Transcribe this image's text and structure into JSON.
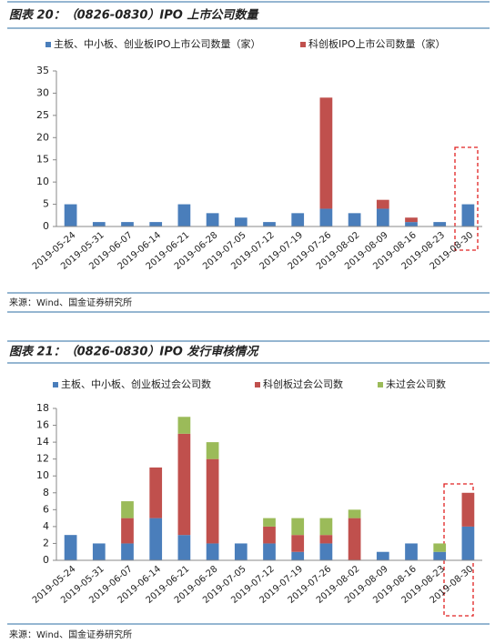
{
  "chart_data": [
    {
      "type": "stacked-bar",
      "title": "图表 20：（0826-0830）IPO 上市公司数量",
      "categories": [
        "2019-05-24",
        "2019-05-31",
        "2019-06-07",
        "2019-06-14",
        "2019-06-21",
        "2019-06-28",
        "2019-07-05",
        "2019-07-12",
        "2019-07-19",
        "2019-07-26",
        "2019-08-02",
        "2019-08-09",
        "2019-08-16",
        "2019-08-23",
        "2019-08-30"
      ],
      "series": [
        {
          "name": "主板、中小板、创业板IPO上市公司数量（家）",
          "color": "#4a7ebb",
          "values": [
            5,
            1,
            1,
            1,
            5,
            3,
            2,
            1,
            3,
            4,
            3,
            4,
            1,
            1,
            5
          ]
        },
        {
          "name": "科创板IPO上市公司数量（家）",
          "color": "#c0504d",
          "values": [
            0,
            0,
            0,
            0,
            0,
            0,
            0,
            0,
            0,
            25,
            0,
            2,
            1,
            0,
            0
          ]
        }
      ],
      "ylim": [
        0,
        35
      ],
      "yticks": [
        0,
        5,
        10,
        15,
        20,
        25,
        30,
        35
      ],
      "grid": false,
      "source": "来源：Wind、国金证券研究所"
    },
    {
      "type": "stacked-bar",
      "title": "图表 21：（0826-0830）IPO 发行审核情况",
      "categories": [
        "2019-05-24",
        "2019-05-31",
        "2019-06-07",
        "2019-06-14",
        "2019-06-21",
        "2019-06-28",
        "2019-07-05",
        "2019-07-12",
        "2019-07-19",
        "2019-07-26",
        "2019-08-02",
        "2019-08-09",
        "2019-08-16",
        "2019-08-23",
        "2019-08-30"
      ],
      "series": [
        {
          "name": "主板、中小板、创业板过会公司数",
          "color": "#4a7ebb",
          "values": [
            3,
            2,
            2,
            5,
            3,
            2,
            2,
            2,
            1,
            2,
            0,
            1,
            2,
            1,
            4
          ]
        },
        {
          "name": "科创板过会公司数",
          "color": "#c0504d",
          "values": [
            0,
            0,
            3,
            6,
            12,
            10,
            0,
            2,
            2,
            1,
            5,
            0,
            0,
            0,
            4
          ]
        },
        {
          "name": "未过会公司数",
          "color": "#9bbb59",
          "values": [
            0,
            0,
            2,
            0,
            2,
            2,
            0,
            1,
            2,
            2,
            1,
            0,
            0,
            1,
            0
          ]
        }
      ],
      "ylim": [
        0,
        18
      ],
      "yticks": [
        0,
        2,
        4,
        6,
        8,
        10,
        12,
        14,
        16,
        18
      ],
      "grid": false,
      "source": "来源：Wind、国金证券研究所"
    }
  ]
}
